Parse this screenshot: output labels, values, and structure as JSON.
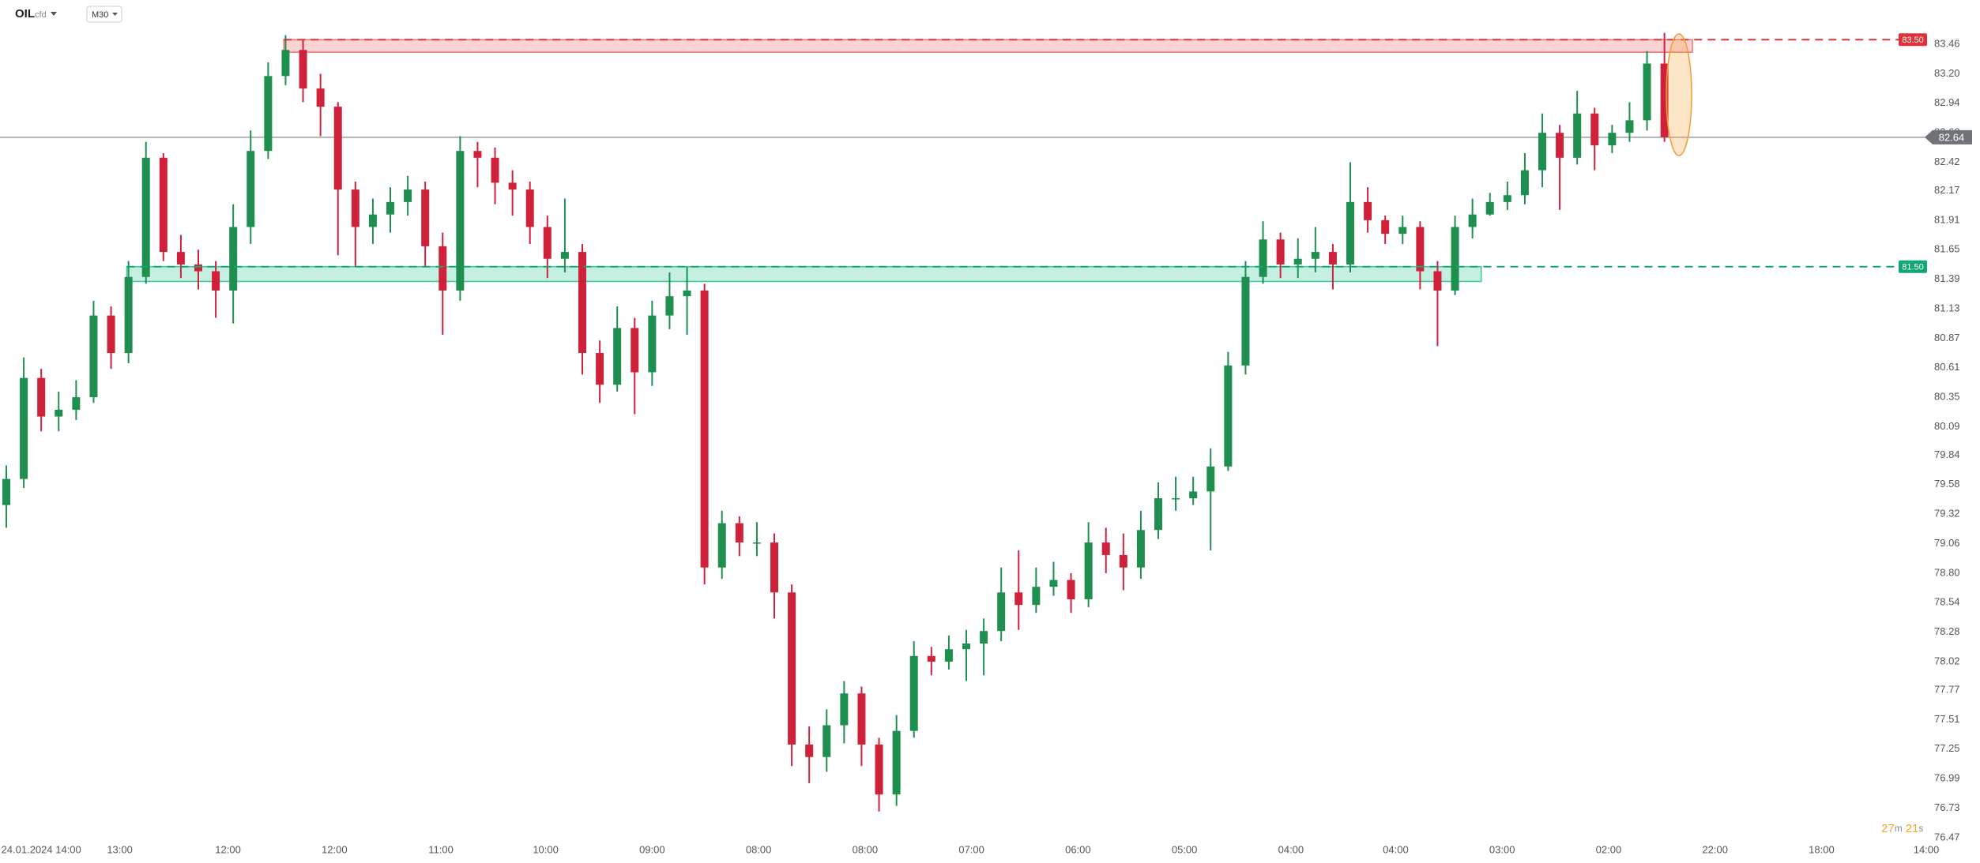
{
  "header": {
    "symbol": "OIL",
    "kind": "cfd",
    "interval": "M30"
  },
  "countdown": [
    "27",
    "m",
    "21",
    "s"
  ],
  "chart_data": {
    "type": "candlestick",
    "up_color": "#1e8f4e",
    "down_color": "#d0213a",
    "xlim": [
      0,
      110
    ],
    "ylim": [
      76.42,
      83.85
    ],
    "xticks": [
      {
        "value": 2,
        "label": "24.01.2024 14:00"
      },
      {
        "value": 6.5,
        "label": "13:00"
      },
      {
        "value": 12.7,
        "label": "12:00"
      },
      {
        "value": 18.8,
        "label": "12:00"
      },
      {
        "value": 24.9,
        "label": "11:00"
      },
      {
        "value": 30.9,
        "label": "10:00"
      },
      {
        "value": 37,
        "label": "09:00"
      },
      {
        "value": 43.1,
        "label": "08:00"
      },
      {
        "value": 49.2,
        "label": "08:00"
      },
      {
        "value": 55.3,
        "label": "07:00"
      },
      {
        "value": 61.4,
        "label": "06:00"
      },
      {
        "value": 67.5,
        "label": "05:00"
      },
      {
        "value": 73.6,
        "label": "04:00"
      },
      {
        "value": 79.6,
        "label": "04:00"
      },
      {
        "value": 85.7,
        "label": "03:00"
      },
      {
        "value": 91.8,
        "label": "02:00"
      },
      {
        "value": 97.9,
        "label": "22:00"
      },
      {
        "value": 104,
        "label": "18:00"
      },
      {
        "value": 110,
        "label": "14:00"
      }
    ],
    "yticks": [
      {
        "value": 83.46,
        "label": "83.46"
      },
      {
        "value": 83.2,
        "label": "83.20"
      },
      {
        "value": 82.94,
        "label": "82.94"
      },
      {
        "value": 82.68,
        "label": "82.68"
      },
      {
        "value": 82.42,
        "label": "82.42"
      },
      {
        "value": 82.17,
        "label": "82.17"
      },
      {
        "value": 81.91,
        "label": "81.91"
      },
      {
        "value": 81.65,
        "label": "81.65"
      },
      {
        "value": 81.39,
        "label": "81.39"
      },
      {
        "value": 81.13,
        "label": "81.13"
      },
      {
        "value": 80.87,
        "label": "80.87"
      },
      {
        "value": 80.61,
        "label": "80.61"
      },
      {
        "value": 80.35,
        "label": "80.35"
      },
      {
        "value": 80.09,
        "label": "80.09"
      },
      {
        "value": 79.84,
        "label": "79.84"
      },
      {
        "value": 79.58,
        "label": "79.58"
      },
      {
        "value": 79.32,
        "label": "79.32"
      },
      {
        "value": 79.06,
        "label": "79.06"
      },
      {
        "value": 78.8,
        "label": "78.80"
      },
      {
        "value": 78.54,
        "label": "78.54"
      },
      {
        "value": 78.28,
        "label": "78.28"
      },
      {
        "value": 78.02,
        "label": "78.02"
      },
      {
        "value": 77.77,
        "label": "77.77"
      },
      {
        "value": 77.51,
        "label": "77.51"
      },
      {
        "value": 77.25,
        "label": "77.25"
      },
      {
        "value": 76.99,
        "label": "76.99"
      },
      {
        "value": 76.73,
        "label": "76.73"
      },
      {
        "value": 76.47,
        "label": "76.47"
      }
    ],
    "open": [
      79.4,
      79.63,
      80.52,
      80.18,
      80.24,
      80.35,
      81.07,
      80.74,
      81.41,
      82.46,
      81.63,
      81.52,
      81.46,
      81.29,
      81.85,
      82.52,
      83.18,
      83.41,
      83.07,
      82.91,
      82.18,
      81.85,
      81.96,
      82.07,
      82.18,
      81.68,
      81.29,
      82.52,
      82.46,
      82.24,
      82.18,
      81.85,
      81.57,
      81.63,
      80.74,
      80.46,
      80.96,
      80.57,
      81.07,
      81.24,
      81.29,
      78.85,
      79.24,
      79.07,
      79.07,
      78.63,
      77.29,
      77.18,
      77.46,
      77.74,
      77.29,
      76.85,
      77.41,
      78.07,
      78.02,
      78.13,
      78.18,
      78.29,
      78.63,
      78.52,
      78.68,
      78.74,
      78.57,
      79.07,
      78.96,
      78.85,
      79.18,
      79.46,
      79.46,
      79.52,
      79.74,
      80.63,
      81.41,
      81.74,
      81.52,
      81.57,
      81.63,
      81.52,
      82.07,
      81.91,
      81.79,
      81.85,
      81.46,
      81.29,
      81.85,
      81.96,
      82.07,
      82.13,
      82.35,
      82.68,
      82.46,
      82.85,
      82.57,
      82.68,
      82.79,
      83.29
    ],
    "high": [
      79.75,
      80.7,
      80.6,
      80.4,
      80.5,
      81.2,
      81.15,
      81.55,
      82.6,
      82.5,
      81.78,
      81.65,
      81.55,
      82.05,
      82.7,
      83.3,
      83.54,
      83.5,
      83.2,
      82.95,
      82.25,
      82.1,
      82.2,
      82.3,
      82.25,
      81.8,
      82.65,
      82.6,
      82.55,
      82.35,
      82.25,
      81.95,
      82.1,
      81.7,
      80.85,
      81.15,
      81.05,
      81.2,
      81.45,
      81.5,
      81.35,
      79.35,
      79.3,
      79.25,
      79.15,
      78.7,
      77.45,
      77.6,
      77.85,
      77.8,
      77.35,
      77.55,
      78.2,
      78.15,
      78.25,
      78.3,
      78.4,
      78.85,
      79.0,
      78.85,
      78.9,
      78.8,
      79.25,
      79.2,
      79.15,
      79.35,
      79.6,
      79.65,
      79.65,
      79.9,
      80.75,
      81.55,
      81.9,
      81.8,
      81.75,
      81.85,
      81.7,
      82.42,
      82.2,
      81.95,
      81.95,
      81.9,
      81.55,
      81.95,
      82.1,
      82.15,
      82.25,
      82.5,
      82.85,
      82.75,
      83.05,
      82.9,
      82.75,
      82.95,
      83.4,
      83.56
    ],
    "low": [
      79.2,
      79.55,
      80.05,
      80.05,
      80.15,
      80.3,
      80.6,
      80.65,
      81.35,
      81.55,
      81.4,
      81.3,
      81.05,
      81.0,
      81.7,
      82.45,
      83.1,
      82.95,
      82.65,
      81.6,
      81.5,
      81.7,
      81.8,
      81.95,
      81.5,
      80.9,
      81.2,
      82.2,
      82.05,
      81.95,
      81.7,
      81.4,
      81.45,
      80.55,
      80.3,
      80.4,
      80.2,
      80.45,
      80.95,
      80.9,
      78.7,
      78.75,
      78.95,
      78.95,
      78.4,
      77.1,
      76.95,
      77.05,
      77.3,
      77.1,
      76.7,
      76.75,
      77.35,
      77.9,
      77.95,
      77.85,
      77.9,
      78.2,
      78.3,
      78.45,
      78.6,
      78.45,
      78.5,
      78.8,
      78.65,
      78.75,
      79.1,
      79.35,
      79.4,
      79.0,
      79.7,
      80.55,
      81.35,
      81.4,
      81.4,
      81.45,
      81.3,
      81.45,
      81.8,
      81.7,
      81.7,
      81.3,
      80.8,
      81.25,
      81.75,
      81.95,
      82.0,
      82.05,
      82.2,
      82.0,
      82.4,
      82.35,
      82.5,
      82.6,
      82.7,
      82.6
    ],
    "close": [
      79.63,
      80.52,
      80.18,
      80.24,
      80.35,
      81.07,
      80.74,
      81.41,
      82.46,
      81.63,
      81.52,
      81.46,
      81.29,
      81.85,
      82.52,
      83.18,
      83.41,
      83.07,
      82.91,
      82.18,
      81.85,
      81.96,
      82.07,
      82.18,
      81.68,
      81.29,
      82.52,
      82.46,
      82.24,
      82.18,
      81.85,
      81.57,
      81.63,
      80.74,
      80.46,
      80.96,
      80.57,
      81.07,
      81.24,
      81.29,
      78.85,
      79.24,
      79.07,
      79.07,
      78.63,
      77.29,
      77.18,
      77.46,
      77.74,
      77.29,
      76.85,
      77.41,
      78.07,
      78.02,
      78.13,
      78.18,
      78.29,
      78.63,
      78.52,
      78.68,
      78.74,
      78.57,
      79.07,
      78.96,
      78.85,
      79.18,
      79.46,
      79.46,
      79.52,
      79.74,
      80.63,
      81.41,
      81.74,
      81.52,
      81.57,
      81.63,
      81.52,
      82.07,
      81.91,
      81.79,
      81.85,
      81.46,
      81.29,
      81.85,
      81.96,
      82.07,
      82.13,
      82.35,
      82.68,
      82.46,
      82.85,
      82.57,
      82.68,
      82.79,
      83.29,
      82.64
    ],
    "zones": [
      {
        "from": 15.9,
        "to": 96.6,
        "low": 83.39,
        "high": 83.5,
        "color": "#f26d6d"
      },
      {
        "from": 6.9,
        "to": 84.5,
        "low": 81.37,
        "high": 81.5,
        "color": "#3cc99a"
      }
    ],
    "levels": [
      {
        "from": 15.9,
        "value": 83.5,
        "label": "83.50",
        "color": "#e0303a"
      },
      {
        "from": 6.9,
        "value": 81.5,
        "label": "81.50",
        "color": "#13a574"
      }
    ],
    "last_price": {
      "value": 82.64,
      "label": "82.64",
      "color": "#6f7378"
    }
  }
}
